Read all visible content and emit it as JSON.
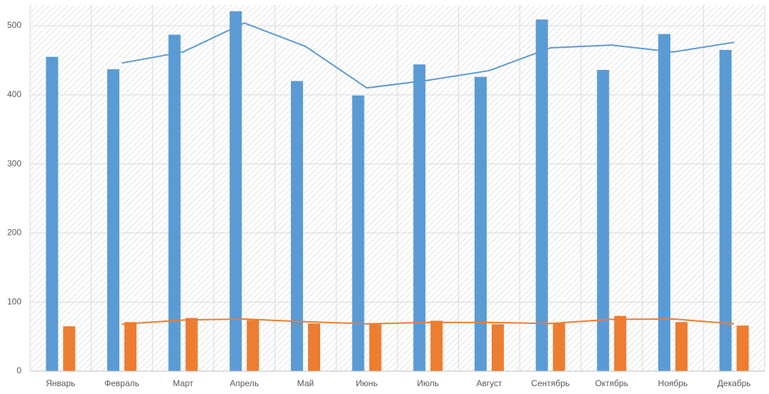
{
  "chart_data": {
    "type": "bar",
    "categories": [
      "Январь",
      "Февраль",
      "Март",
      "Апрель",
      "Май",
      "Июнь",
      "Июль",
      "Август",
      "Сентябрь",
      "Октябрь",
      "Ноябрь",
      "Декабрь"
    ],
    "series": [
      {
        "type": "bar",
        "color": "#5b9bd5",
        "values": [
          455,
          437,
          487,
          521,
          420,
          399,
          444,
          426,
          509,
          436,
          488,
          465
        ]
      },
      {
        "type": "bar",
        "color": "#ed7d31",
        "values": [
          65,
          71,
          77,
          74,
          69,
          68,
          73,
          68,
          70,
          80,
          71,
          66
        ]
      },
      {
        "type": "line",
        "color": "#5b9bd5",
        "values": [
          null,
          446,
          462,
          504,
          470,
          410,
          421,
          435,
          468,
          472,
          462,
          476
        ]
      },
      {
        "type": "line",
        "color": "#ed7d31",
        "values": [
          null,
          68,
          74,
          75.5,
          71.5,
          68.5,
          70.5,
          70.5,
          69,
          75,
          75.5,
          68.5
        ]
      }
    ],
    "ylim": [
      0,
      530
    ],
    "yticks": [
      0,
      100,
      200,
      300,
      400,
      500
    ],
    "grid": true
  }
}
